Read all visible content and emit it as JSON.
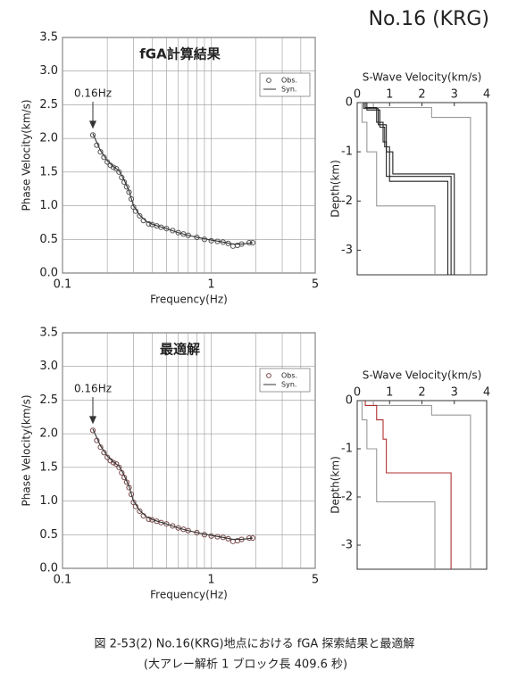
{
  "header": {
    "title": "No.16 (KRG)"
  },
  "chart_data": [
    {
      "type": "line",
      "title": "fGA計算結果",
      "xlabel": "Frequency(Hz)",
      "ylabel": "Phase Velocity(km/s)",
      "xlog": true,
      "xlim": [
        0.1,
        5
      ],
      "xticks": [
        0.1,
        1,
        5
      ],
      "x_minor_grid": [
        0.2,
        0.3,
        0.4,
        0.5,
        0.6,
        0.7,
        0.8,
        0.9,
        2,
        3,
        4
      ],
      "ylim": [
        0,
        3.5
      ],
      "yticks": [
        {
          "value": 0,
          "label": "0.0"
        },
        0.5,
        {
          "value": 1,
          "label": "1.0"
        },
        1.5,
        {
          "value": 2,
          "label": "2.0"
        },
        2.5,
        {
          "value": 3,
          "label": "3.0"
        },
        3.5
      ],
      "grid": true,
      "legend": "upper right",
      "annotation": "0.16Hz",
      "series": [
        {
          "name": "Obs.",
          "mode": "markers",
          "color": "#555555",
          "x": [
            0.16,
            0.17,
            0.18,
            0.19,
            0.2,
            0.21,
            0.22,
            0.23,
            0.24,
            0.25,
            0.26,
            0.27,
            0.28,
            0.29,
            0.3,
            0.31,
            0.33,
            0.35,
            0.38,
            0.4,
            0.43,
            0.46,
            0.5,
            0.55,
            0.6,
            0.65,
            0.7,
            0.8,
            0.9,
            1.0,
            1.1,
            1.2,
            1.3,
            1.4,
            1.5,
            1.6,
            1.8,
            1.9
          ],
          "values": [
            2.05,
            1.9,
            1.8,
            1.72,
            1.65,
            1.6,
            1.57,
            1.55,
            1.5,
            1.42,
            1.35,
            1.28,
            1.2,
            1.1,
            0.98,
            0.92,
            0.85,
            0.78,
            0.73,
            0.72,
            0.7,
            0.68,
            0.66,
            0.63,
            0.6,
            0.58,
            0.56,
            0.53,
            0.5,
            0.48,
            0.47,
            0.46,
            0.44,
            0.4,
            0.41,
            0.43,
            0.45,
            0.45
          ]
        },
        {
          "name": "Syn.",
          "mode": "line",
          "color": "#333333",
          "x": [
            0.16,
            0.18,
            0.2,
            0.22,
            0.24,
            0.26,
            0.28,
            0.3,
            0.33,
            0.37,
            0.42,
            0.5,
            0.6,
            0.7,
            0.85,
            1,
            1.2,
            1.4,
            1.6,
            1.9
          ],
          "values": [
            2.07,
            1.82,
            1.67,
            1.58,
            1.52,
            1.38,
            1.22,
            1.0,
            0.86,
            0.76,
            0.71,
            0.66,
            0.6,
            0.56,
            0.52,
            0.49,
            0.46,
            0.43,
            0.43,
            0.45
          ]
        }
      ]
    },
    {
      "type": "line",
      "title": "最適解",
      "xlabel": "Frequency(Hz)",
      "ylabel": "Phase Velocity(km/s)",
      "xlog": true,
      "xlim": [
        0.1,
        5
      ],
      "xticks": [
        0.1,
        1,
        5
      ],
      "x_minor_grid": [
        0.2,
        0.3,
        0.4,
        0.5,
        0.6,
        0.7,
        0.8,
        0.9,
        2,
        3,
        4
      ],
      "ylim": [
        0,
        3.5
      ],
      "yticks": [
        {
          "value": 0,
          "label": "0.0"
        },
        0.5,
        {
          "value": 1,
          "label": "1.0"
        },
        1.5,
        {
          "value": 2,
          "label": "2.0"
        },
        2.5,
        {
          "value": 3,
          "label": "3.0"
        },
        3.5
      ],
      "grid": true,
      "legend": "upper right",
      "annotation": "0.16Hz",
      "series": [
        {
          "name": "Obs.",
          "mode": "markers",
          "color": "#7a4a4a",
          "x": [
            0.16,
            0.17,
            0.18,
            0.19,
            0.2,
            0.21,
            0.22,
            0.23,
            0.24,
            0.25,
            0.26,
            0.27,
            0.28,
            0.29,
            0.3,
            0.31,
            0.33,
            0.35,
            0.38,
            0.4,
            0.43,
            0.46,
            0.5,
            0.55,
            0.6,
            0.65,
            0.7,
            0.8,
            0.9,
            1.0,
            1.1,
            1.2,
            1.3,
            1.4,
            1.5,
            1.6,
            1.8,
            1.9
          ],
          "values": [
            2.05,
            1.9,
            1.8,
            1.72,
            1.65,
            1.6,
            1.57,
            1.55,
            1.5,
            1.42,
            1.35,
            1.28,
            1.2,
            1.1,
            0.98,
            0.92,
            0.85,
            0.78,
            0.73,
            0.72,
            0.7,
            0.68,
            0.66,
            0.63,
            0.6,
            0.58,
            0.56,
            0.53,
            0.5,
            0.48,
            0.47,
            0.46,
            0.44,
            0.4,
            0.41,
            0.43,
            0.45,
            0.45
          ]
        },
        {
          "name": "Syn.",
          "mode": "line",
          "color": "#333333",
          "x": [
            0.16,
            0.18,
            0.2,
            0.22,
            0.24,
            0.26,
            0.28,
            0.3,
            0.33,
            0.37,
            0.42,
            0.5,
            0.6,
            0.7,
            0.85,
            1,
            1.2,
            1.4,
            1.6,
            1.9
          ],
          "values": [
            2.07,
            1.82,
            1.67,
            1.58,
            1.52,
            1.38,
            1.22,
            1.0,
            0.86,
            0.76,
            0.71,
            0.66,
            0.6,
            0.56,
            0.52,
            0.49,
            0.46,
            0.43,
            0.43,
            0.45
          ]
        }
      ]
    },
    {
      "type": "line",
      "title": "S-Wave Velocity(km/s)",
      "ylabel": "Depth(km)",
      "x_axis_position": "top",
      "xlim": [
        0,
        4
      ],
      "xticks": [
        0,
        1,
        2,
        3,
        4
      ],
      "ylim": [
        -3.5,
        0
      ],
      "yticks": [
        0,
        -1,
        -2,
        -3
      ],
      "grid": false,
      "series": [
        {
          "mode": "line",
          "color": "#999999",
          "x": [
            0.15,
            0.15,
            0.3,
            0.3,
            0.6,
            0.6,
            2.4,
            2.4
          ],
          "values": [
            0,
            -0.4,
            -0.4,
            -1.0,
            -1.0,
            -2.1,
            -2.1,
            -3.5
          ]
        },
        {
          "mode": "line",
          "color": "#999999",
          "x": [
            0.5,
            0.5,
            2.3,
            2.3,
            3.5,
            3.5
          ],
          "values": [
            0,
            -0.1,
            -0.1,
            -0.3,
            -0.3,
            -3.5
          ]
        },
        {
          "mode": "line",
          "color": "#222222",
          "x": [
            0.25,
            0.25,
            0.6,
            0.6,
            0.8,
            0.8,
            0.9,
            0.9,
            2.9,
            2.9
          ],
          "values": [
            0,
            -0.1,
            -0.1,
            -0.4,
            -0.4,
            -0.8,
            -0.8,
            -1.5,
            -1.5,
            -3.5
          ]
        },
        {
          "mode": "line",
          "color": "#222222",
          "x": [
            0.3,
            0.3,
            0.7,
            0.7,
            0.85,
            0.85,
            1.0,
            1.0,
            2.8,
            2.8
          ],
          "values": [
            0,
            -0.15,
            -0.15,
            -0.5,
            -0.5,
            -0.9,
            -0.9,
            -1.6,
            -1.6,
            -3.5
          ]
        },
        {
          "mode": "line",
          "color": "#222222",
          "x": [
            0.2,
            0.2,
            0.65,
            0.65,
            0.9,
            0.9,
            1.1,
            1.1,
            3.0,
            3.0
          ],
          "values": [
            0,
            -0.12,
            -0.12,
            -0.45,
            -0.45,
            -1.0,
            -1.0,
            -1.45,
            -1.45,
            -3.5
          ]
        }
      ]
    },
    {
      "type": "line",
      "title": "S-Wave Velocity(km/s)",
      "ylabel": "Depth(km)",
      "x_axis_position": "top",
      "xlim": [
        0,
        4
      ],
      "xticks": [
        0,
        1,
        2,
        3,
        4
      ],
      "ylim": [
        -3.5,
        0
      ],
      "yticks": [
        0,
        -1,
        -2,
        -3
      ],
      "grid": false,
      "series": [
        {
          "mode": "line",
          "color": "#999999",
          "x": [
            0.15,
            0.15,
            0.3,
            0.3,
            0.6,
            0.6,
            2.4,
            2.4
          ],
          "values": [
            0,
            -0.4,
            -0.4,
            -1.0,
            -1.0,
            -2.1,
            -2.1,
            -3.5
          ]
        },
        {
          "mode": "line",
          "color": "#999999",
          "x": [
            0.5,
            0.5,
            2.3,
            2.3,
            3.5,
            3.5
          ],
          "values": [
            0,
            -0.1,
            -0.1,
            -0.3,
            -0.3,
            -3.5
          ]
        },
        {
          "mode": "line",
          "color": "#b03030",
          "x": [
            0.25,
            0.25,
            0.6,
            0.6,
            0.8,
            0.8,
            0.9,
            0.9,
            2.9,
            2.9
          ],
          "values": [
            0,
            -0.1,
            -0.1,
            -0.4,
            -0.4,
            -0.8,
            -0.8,
            -1.5,
            -1.5,
            -3.5
          ]
        }
      ]
    }
  ],
  "caption": {
    "line1": "図 2-53(2) No.16(KRG)地点における fGA 探索結果と最適解",
    "line2": "(大アレー解析 1 ブロック長 409.6 秒)"
  }
}
